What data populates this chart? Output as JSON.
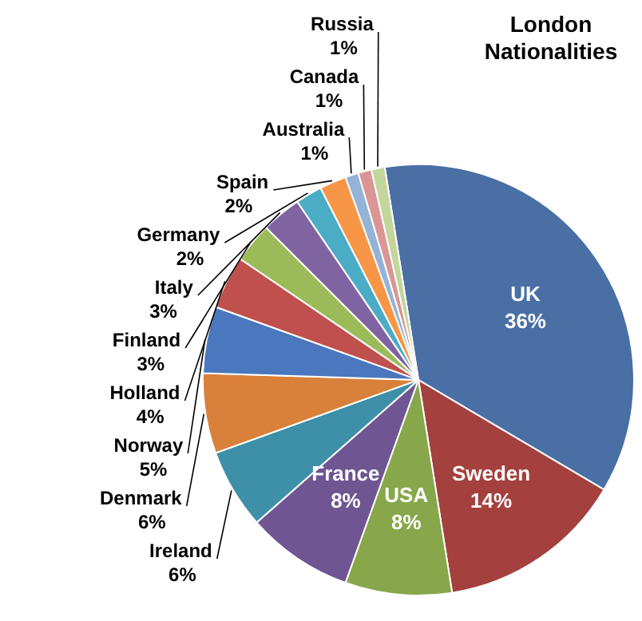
{
  "chart_data": {
    "type": "pie",
    "title": "London Nationalities",
    "categories": [
      "UK",
      "Sweden",
      "USA",
      "France",
      "Ireland",
      "Denmark",
      "Norway",
      "Holland",
      "Finland",
      "Italy",
      "Germany",
      "Spain",
      "Australia",
      "Canada",
      "Russia"
    ],
    "values": [
      36,
      14,
      8,
      8,
      6,
      6,
      5,
      4,
      3,
      3,
      2,
      2,
      1,
      1,
      1
    ],
    "value_labels": [
      "36%",
      "14%",
      "8%",
      "8%",
      "6%",
      "6%",
      "5%",
      "4%",
      "3%",
      "3%",
      "2%",
      "2%",
      "1%",
      "1%",
      "1%"
    ],
    "colors": [
      "#4a6fa5",
      "#a4403e",
      "#87a74a",
      "#6f5592",
      "#3e8fa8",
      "#d9803a",
      "#4a77bd",
      "#c0504d",
      "#9bbb59",
      "#8064a2",
      "#4bacc6",
      "#f79646",
      "#95b3d7",
      "#d99694",
      "#c3d69b"
    ]
  }
}
